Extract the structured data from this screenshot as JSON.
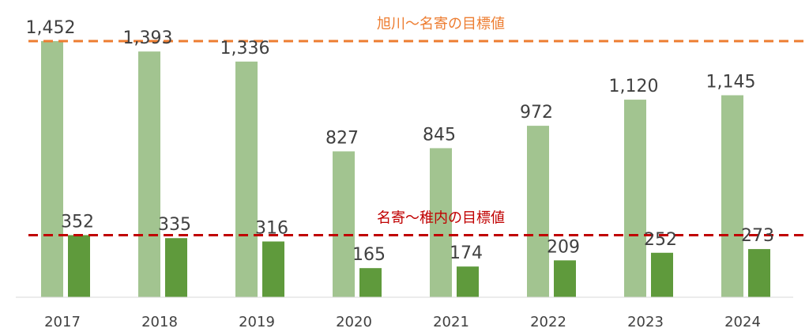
{
  "chart_data": {
    "type": "bar",
    "categories": [
      "2017",
      "2018",
      "2019",
      "2020",
      "2021",
      "2022",
      "2023",
      "2024"
    ],
    "series": [
      {
        "values": [
          1452,
          1393,
          1336,
          827,
          845,
          972,
          1120,
          1145
        ],
        "color": "#a2c490"
      },
      {
        "values": [
          352,
          335,
          316,
          165,
          174,
          209,
          252,
          273
        ],
        "color": "#5f9a3c"
      }
    ],
    "value_labels": [
      [
        "1,452",
        "1,393",
        "1,336",
        "827",
        "845",
        "972",
        "1,120",
        "1,145"
      ],
      [
        "352",
        "335",
        "316",
        "165",
        "174",
        "209",
        "252",
        "273"
      ]
    ],
    "reference_lines": [
      {
        "label": "旭川～名寄の目標値",
        "value": 1452,
        "color": "#ed7d31"
      },
      {
        "label": "名寄～稚内の目標値",
        "value": 352,
        "color": "#c00000"
      }
    ],
    "ylim": [
      0,
      1452
    ],
    "grid": false,
    "legend": "none"
  }
}
